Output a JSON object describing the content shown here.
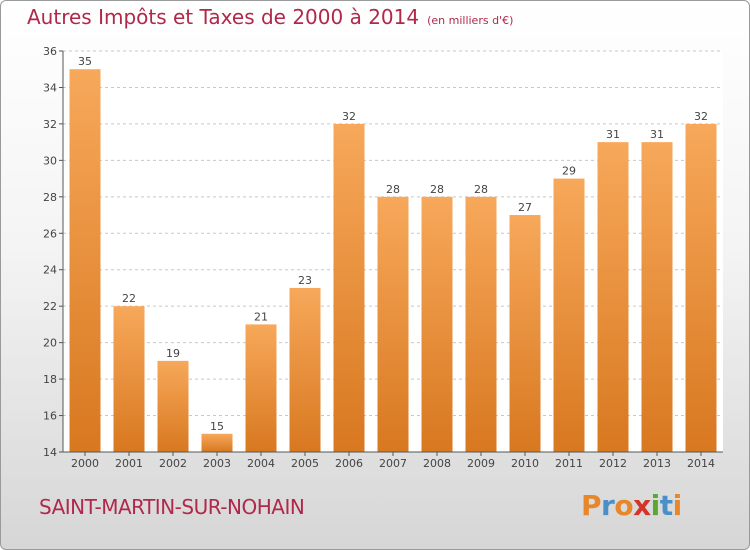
{
  "title": "Autres Impôts et Taxes de 2000 à 2014",
  "subtitle": "(en milliers d'€)",
  "commune": "SAINT-MARTIN-SUR-NOHAIN",
  "logo": {
    "letters": [
      "P",
      "r",
      "o",
      "x",
      "i",
      "t",
      "i"
    ],
    "colors": [
      "#e8862a",
      "#4a90c8",
      "#e8862a",
      "#d4342a",
      "#5aa832",
      "#4a90c8",
      "#e8862a"
    ]
  },
  "colors": {
    "bar_light": "#f7a85a",
    "bar_dark": "#d87820",
    "title": "#b0284a",
    "axis": "#555555"
  },
  "chart_data": {
    "type": "bar",
    "title": "Autres Impôts et Taxes de 2000 à 2014",
    "subtitle": "(en milliers d'€)",
    "xlabel": "",
    "ylabel": "",
    "categories": [
      "2000",
      "2001",
      "2002",
      "2003",
      "2004",
      "2005",
      "2006",
      "2007",
      "2008",
      "2009",
      "2010",
      "2011",
      "2012",
      "2013",
      "2014"
    ],
    "values": [
      35,
      22,
      19,
      15,
      21,
      23,
      32,
      28,
      28,
      28,
      27,
      29,
      31,
      31,
      32
    ],
    "ylim": [
      14,
      36
    ],
    "yticks": [
      14,
      16,
      18,
      20,
      22,
      24,
      26,
      28,
      30,
      32,
      34,
      36
    ],
    "grid": "horizontal-dashed"
  }
}
